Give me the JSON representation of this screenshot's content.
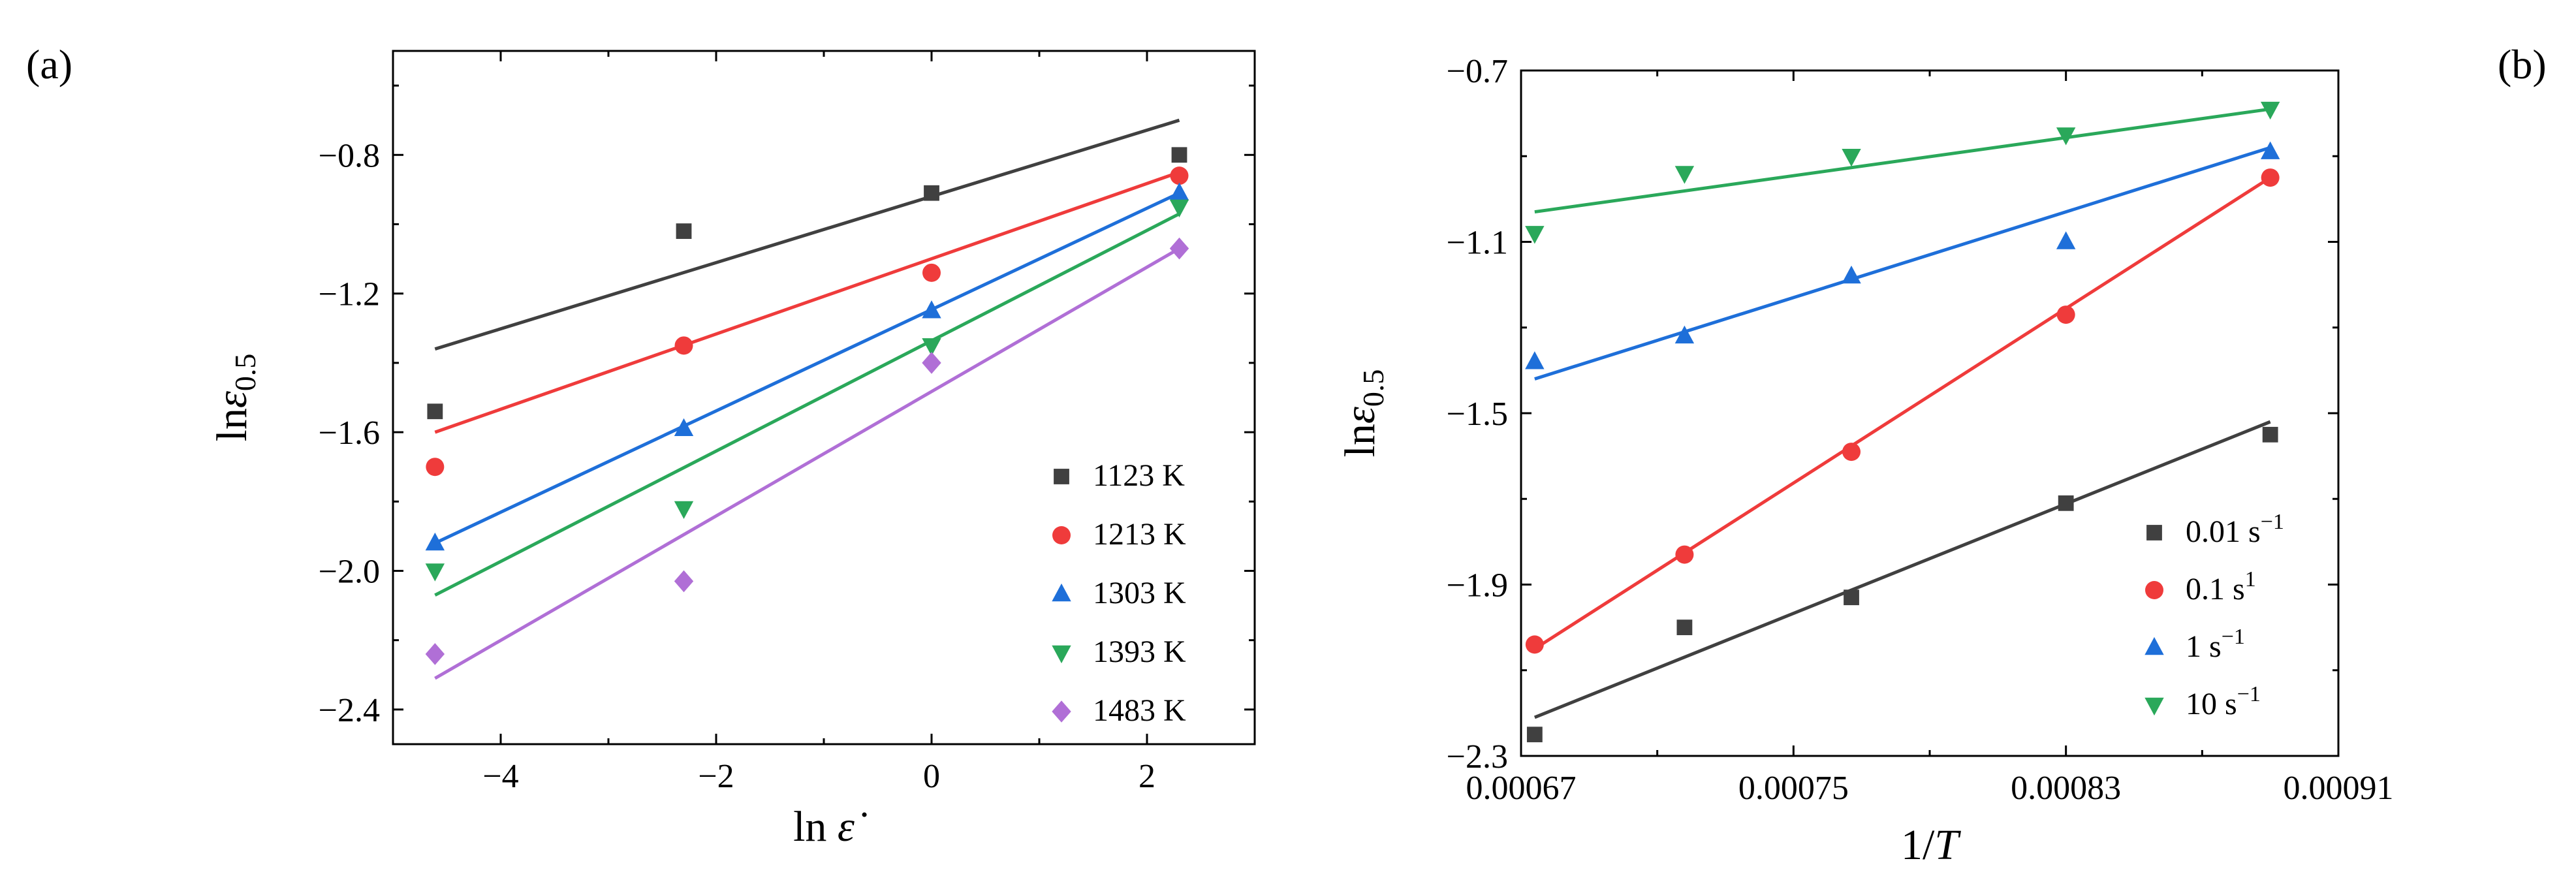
{
  "panel_tags": [
    "(a)",
    "(b)"
  ],
  "chart_data": [
    {
      "type": "scatter",
      "xlabel": "ln ε̇",
      "ylabel": "lnε0.5",
      "xlim": [
        -5,
        3
      ],
      "ylim": [
        -2.5,
        -0.5
      ],
      "xticks": [
        -4,
        -2,
        0,
        2
      ],
      "xtick_labels": [
        "−4",
        "−2",
        "0",
        "2"
      ],
      "yticks": [
        -0.8,
        -1.2,
        -1.6,
        -2.0,
        -2.4
      ],
      "ytick_labels": [
        "−0.8",
        "−1.2",
        "−1.6",
        "−2.0",
        "−2.4"
      ],
      "grid": false,
      "legend_position": "bottom-right",
      "series": [
        {
          "name": "1123 K",
          "marker": "square",
          "color": "#404040",
          "x": [
            -4.61,
            -2.3,
            0.0,
            2.3
          ],
          "y": [
            -1.54,
            -1.02,
            -0.91,
            -0.8
          ],
          "fit": [
            [
              -4.61,
              -1.36
            ],
            [
              2.3,
              -0.7
            ]
          ]
        },
        {
          "name": "1213 K",
          "marker": "circle",
          "color": "#ef3b3b",
          "x": [
            -4.61,
            -2.3,
            0.0,
            2.3
          ],
          "y": [
            -1.7,
            -1.35,
            -1.14,
            -0.86
          ],
          "fit": [
            [
              -4.61,
              -1.6
            ],
            [
              2.3,
              -0.85
            ]
          ]
        },
        {
          "name": "1303 K",
          "marker": "triangle-up",
          "color": "#1e6fd9",
          "x": [
            -4.61,
            -2.3,
            0.0,
            2.3
          ],
          "y": [
            -1.92,
            -1.59,
            -1.25,
            -0.91
          ],
          "fit": [
            [
              -4.61,
              -1.92
            ],
            [
              2.3,
              -0.91
            ]
          ]
        },
        {
          "name": "1393 K",
          "marker": "triangle-down",
          "color": "#2aa85a",
          "x": [
            -4.61,
            -2.3,
            0.0,
            2.3
          ],
          "y": [
            -2.0,
            -1.82,
            -1.35,
            -0.95
          ],
          "fit": [
            [
              -4.61,
              -2.07
            ],
            [
              2.3,
              -0.97
            ]
          ]
        },
        {
          "name": "1483 K",
          "marker": "diamond",
          "color": "#b06fd6",
          "x": [
            -4.61,
            -2.3,
            0.0,
            2.3
          ],
          "y": [
            -2.24,
            -2.03,
            -1.4,
            -1.07
          ],
          "fit": [
            [
              -4.61,
              -2.31
            ],
            [
              2.3,
              -1.07
            ]
          ]
        }
      ]
    },
    {
      "type": "scatter",
      "xlabel": "1/T",
      "ylabel": "lnε0.5",
      "xlim": [
        0.00067,
        0.00091
      ],
      "ylim": [
        -2.3,
        -0.7
      ],
      "xticks": [
        0.00067,
        0.00075,
        0.00083,
        0.00091
      ],
      "xtick_labels": [
        "0.00067",
        "0.00075",
        "0.00083",
        "0.00091"
      ],
      "yticks": [
        -0.7,
        -1.1,
        -1.5,
        -1.9,
        -2.3
      ],
      "ytick_labels": [
        "−0.7",
        "−1.1",
        "−1.5",
        "−1.9",
        "−2.3"
      ],
      "grid": false,
      "legend_position": "bottom-right",
      "series": [
        {
          "name": "0.01 s",
          "name_sup": "−1",
          "marker": "square",
          "color": "#404040",
          "x": [
            0.000674,
            0.000718,
            0.000767,
            0.00083,
            0.00089
          ],
          "y": [
            -2.25,
            -2.0,
            -1.93,
            -1.71,
            -1.55
          ],
          "fit": [
            [
              0.000674,
              -2.21
            ],
            [
              0.00089,
              -1.52
            ]
          ]
        },
        {
          "name": "0.1 s",
          "name_sup": "1",
          "marker": "circle",
          "color": "#ef3b3b",
          "x": [
            0.000674,
            0.000718,
            0.000767,
            0.00083,
            0.00089
          ],
          "y": [
            -2.04,
            -1.83,
            -1.59,
            -1.27,
            -0.95
          ],
          "fit": [
            [
              0.000674,
              -2.05
            ],
            [
              0.00089,
              -0.95
            ]
          ]
        },
        {
          "name": "1 s",
          "name_sup": "−1",
          "marker": "triangle-up",
          "color": "#1e6fd9",
          "x": [
            0.000674,
            0.000718,
            0.000767,
            0.00083,
            0.00089
          ],
          "y": [
            -1.38,
            -1.32,
            -1.18,
            -1.1,
            -0.89
          ],
          "fit": [
            [
              0.000674,
              -1.42
            ],
            [
              0.00089,
              -0.88
            ]
          ]
        },
        {
          "name": "10 s",
          "name_sup": "−1",
          "marker": "triangle-down",
          "color": "#2aa85a",
          "x": [
            0.000674,
            0.000718,
            0.000767,
            0.00083,
            0.00089
          ],
          "y": [
            -1.08,
            -0.94,
            -0.9,
            -0.85,
            -0.79
          ],
          "fit": [
            [
              0.000674,
              -1.03
            ],
            [
              0.00089,
              -0.79
            ]
          ]
        }
      ]
    }
  ]
}
